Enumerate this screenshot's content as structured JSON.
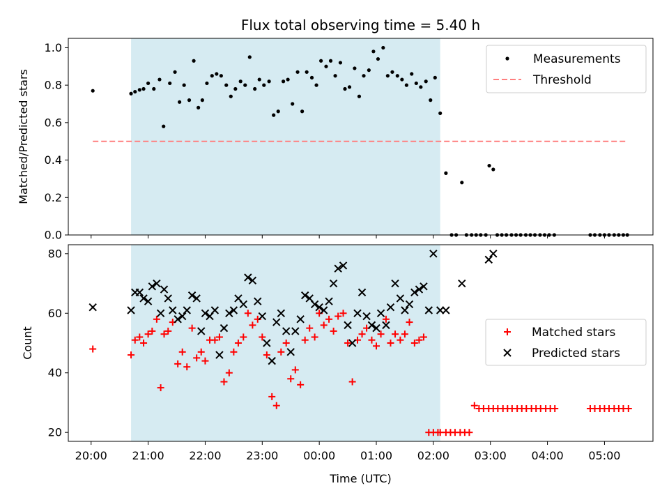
{
  "chart_data": [
    {
      "type": "scatter",
      "title": "Flux total observing time = 5.40 h",
      "xlabel": "",
      "ylabel": "Matched/Predicted stars",
      "ylim": [
        0,
        1.05
      ],
      "yticks": [
        "0.0",
        "0.2",
        "0.4",
        "0.6",
        "0.8",
        "1.0"
      ],
      "xlim": [
        19.6,
        29.85
      ],
      "legend_position": "top-right",
      "shaded_span": {
        "x_start": 20.7,
        "x_end": 26.12,
        "color": "#add8e6"
      },
      "threshold": {
        "name": "Threshold",
        "value": 0.5,
        "x_start": 20.03,
        "x_end": 29.4,
        "color": "#ff7f7f"
      },
      "series": [
        {
          "name": "Measurements",
          "color": "#000000",
          "marker": "dot",
          "x": [
            20.03,
            20.7,
            20.77,
            20.85,
            20.92,
            21.0,
            21.1,
            21.2,
            21.27,
            21.38,
            21.47,
            21.55,
            21.63,
            21.72,
            21.8,
            21.88,
            21.95,
            22.03,
            22.12,
            22.2,
            22.28,
            22.37,
            22.45,
            22.53,
            22.62,
            22.7,
            22.78,
            22.87,
            22.95,
            23.03,
            23.12,
            23.2,
            23.28,
            23.37,
            23.45,
            23.53,
            23.62,
            23.7,
            23.78,
            23.87,
            23.95,
            24.03,
            24.12,
            24.2,
            24.28,
            24.37,
            24.45,
            24.53,
            24.62,
            24.7,
            24.78,
            24.87,
            24.95,
            25.03,
            25.12,
            25.2,
            25.28,
            25.37,
            25.45,
            25.53,
            25.62,
            25.7,
            25.78,
            25.87,
            25.95,
            26.03,
            26.12,
            26.22,
            26.32,
            26.4,
            26.5,
            26.58,
            26.67,
            26.75,
            26.83,
            26.92,
            26.98,
            27.05,
            27.12,
            27.2,
            27.28,
            27.37,
            27.45,
            27.53,
            27.62,
            27.7,
            27.78,
            27.87,
            27.95,
            28.03,
            28.12,
            28.75,
            28.83,
            28.92,
            29.0,
            29.08,
            29.17,
            29.25,
            29.33,
            29.4
          ],
          "y": [
            0.77,
            0.755,
            0.765,
            0.775,
            0.78,
            0.81,
            0.78,
            0.83,
            0.58,
            0.81,
            0.87,
            0.71,
            0.8,
            0.72,
            0.93,
            0.68,
            0.72,
            0.81,
            0.85,
            0.86,
            0.85,
            0.8,
            0.74,
            0.78,
            0.82,
            0.8,
            0.95,
            0.78,
            0.83,
            0.8,
            0.82,
            0.64,
            0.66,
            0.82,
            0.83,
            0.7,
            0.87,
            0.66,
            0.87,
            0.84,
            0.8,
            0.93,
            0.9,
            0.93,
            0.85,
            0.92,
            0.78,
            0.79,
            0.89,
            0.74,
            0.85,
            0.88,
            0.98,
            0.94,
            1.0,
            0.85,
            0.87,
            0.85,
            0.83,
            0.8,
            0.86,
            0.81,
            0.79,
            0.82,
            0.72,
            0.84,
            0.65,
            0.33,
            0.0,
            0.0,
            0.28,
            0.0,
            0.0,
            0.0,
            0.0,
            0.0,
            0.37,
            0.35,
            0.0,
            0.0,
            0.0,
            0.0,
            0.0,
            0.0,
            0.0,
            0.0,
            0.0,
            0.0,
            0.0,
            0.0,
            0.0,
            0.0,
            0.0,
            0.0,
            0.0,
            0.0,
            0.0,
            0.0,
            0.0,
            0.0
          ]
        }
      ]
    },
    {
      "type": "scatter",
      "title": "",
      "xlabel": "Time (UTC)",
      "ylabel": "Count",
      "ylim": [
        17,
        83
      ],
      "yticks": [
        "20",
        "40",
        "60",
        "80"
      ],
      "xlim": [
        19.6,
        29.85
      ],
      "xticks": [
        "20:00",
        "21:00",
        "22:00",
        "23:00",
        "00:00",
        "01:00",
        "02:00",
        "03:00",
        "04:00",
        "05:00"
      ],
      "legend_position": "center-right",
      "shaded_span": {
        "x_start": 20.7,
        "x_end": 26.12,
        "color": "#add8e6"
      },
      "series": [
        {
          "name": "Matched stars",
          "color": "#ff0000",
          "marker": "plus",
          "x": [
            20.03,
            20.7,
            20.77,
            20.85,
            20.92,
            21.0,
            21.07,
            21.15,
            21.22,
            21.28,
            21.35,
            21.43,
            21.52,
            21.6,
            21.68,
            21.77,
            21.85,
            21.93,
            22.0,
            22.08,
            22.17,
            22.25,
            22.33,
            22.42,
            22.5,
            22.58,
            22.67,
            22.75,
            22.83,
            22.92,
            23.0,
            23.08,
            23.17,
            23.25,
            23.33,
            23.42,
            23.5,
            23.58,
            23.67,
            23.75,
            23.83,
            23.92,
            24.0,
            24.08,
            24.17,
            24.25,
            24.33,
            24.42,
            24.5,
            24.58,
            24.67,
            24.75,
            24.83,
            24.92,
            25.0,
            25.08,
            25.17,
            25.25,
            25.33,
            25.42,
            25.5,
            25.58,
            25.67,
            25.75,
            25.83,
            25.92,
            26.0,
            26.08,
            26.12,
            26.22,
            26.3,
            26.38,
            26.47,
            26.55,
            26.63,
            26.72,
            26.8,
            26.88,
            26.97,
            27.05,
            27.13,
            27.22,
            27.3,
            27.38,
            27.47,
            27.55,
            27.63,
            27.72,
            27.8,
            27.88,
            27.97,
            28.05,
            28.13,
            28.75,
            28.83,
            28.92,
            29.0,
            29.08,
            29.17,
            29.25,
            29.33,
            29.42
          ],
          "y": [
            48,
            46,
            51,
            52,
            50,
            53,
            54,
            58,
            35,
            53,
            54,
            57,
            43,
            47,
            42,
            55,
            45,
            47,
            44,
            51,
            51,
            52,
            37,
            40,
            47,
            50,
            52,
            60,
            56,
            58,
            52,
            46,
            32,
            29,
            47,
            50,
            38,
            41,
            36,
            51,
            55,
            52,
            60,
            56,
            58,
            54,
            59,
            60,
            50,
            37,
            51,
            53,
            55,
            51,
            49,
            53,
            58,
            50,
            53,
            51,
            53,
            57,
            50,
            51,
            52,
            20,
            20,
            20,
            20,
            20,
            20,
            20,
            20,
            20,
            20,
            29,
            28,
            28,
            28,
            28,
            28,
            28,
            28,
            28,
            28,
            28,
            28,
            28,
            28,
            28,
            28,
            28,
            28,
            28,
            28,
            28,
            28,
            28,
            28,
            28,
            28,
            28
          ],
          "note_pending": ""
        },
        {
          "name": "Predicted stars",
          "color": "#000000",
          "marker": "x",
          "x": [
            20.03,
            20.7,
            20.77,
            20.85,
            20.92,
            21.0,
            21.07,
            21.15,
            21.22,
            21.28,
            21.35,
            21.43,
            21.52,
            21.6,
            21.68,
            21.77,
            21.85,
            21.93,
            22.0,
            22.08,
            22.17,
            22.25,
            22.33,
            22.42,
            22.5,
            22.58,
            22.67,
            22.75,
            22.83,
            22.92,
            23.0,
            23.08,
            23.17,
            23.25,
            23.33,
            23.42,
            23.5,
            23.58,
            23.67,
            23.75,
            23.83,
            23.92,
            24.0,
            24.08,
            24.17,
            24.25,
            24.33,
            24.42,
            24.5,
            24.58,
            24.67,
            24.75,
            24.83,
            24.92,
            25.0,
            25.08,
            25.17,
            25.25,
            25.33,
            25.42,
            25.5,
            25.58,
            25.67,
            25.75,
            25.83,
            25.92,
            26.0,
            26.12,
            26.22,
            26.5,
            26.97,
            27.05
          ],
          "y": [
            62,
            61,
            67,
            67,
            65,
            64,
            69,
            70,
            60,
            68,
            65,
            61,
            58,
            59,
            61,
            66,
            65,
            54,
            60,
            59,
            61,
            46,
            55,
            60,
            61,
            65,
            63,
            72,
            71,
            64,
            59,
            50,
            44,
            57,
            60,
            54,
            47,
            54,
            58,
            66,
            65,
            63,
            62,
            61,
            64,
            70,
            75,
            76,
            56,
            50,
            60,
            67,
            59,
            56,
            55,
            60,
            56,
            62,
            70,
            65,
            61,
            63,
            67,
            68,
            69,
            61,
            80,
            61,
            61,
            70,
            78,
            80
          ]
        }
      ]
    }
  ]
}
